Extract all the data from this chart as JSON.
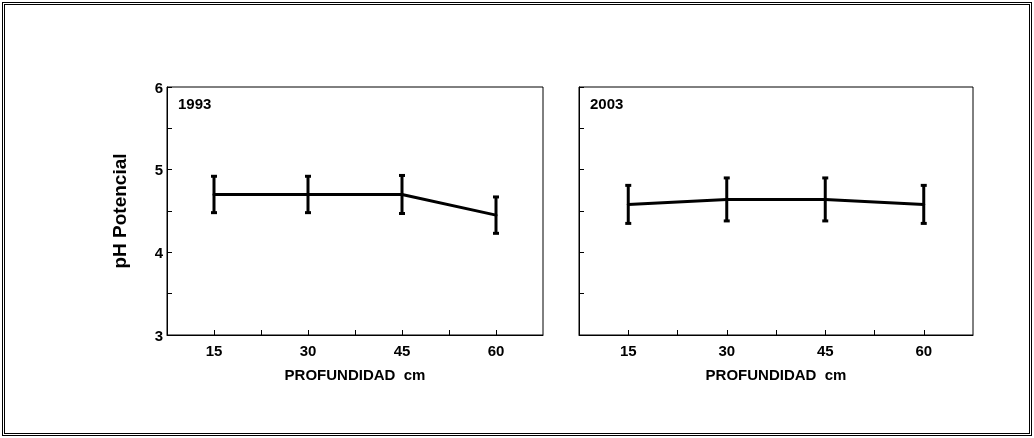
{
  "chart_data": [
    {
      "type": "line",
      "title": "1993",
      "xlabel": "PROFUNDIDAD  cm",
      "ylabel": "pH Potencial",
      "x": [
        15,
        30,
        45,
        60
      ],
      "series": [
        {
          "color": "#000000",
          "values": [
            4.7,
            4.7,
            4.7,
            4.45
          ],
          "errors": [
            0.22,
            0.22,
            0.23,
            0.22
          ]
        }
      ],
      "xlim": [
        7.5,
        67.5
      ],
      "xticks": [
        15,
        30,
        45,
        60,
        {
          "value": 22.5,
          "label": null
        },
        {
          "value": 37.5,
          "label": null
        },
        {
          "value": 52.5,
          "label": null
        }
      ],
      "ylim": [
        3,
        6
      ],
      "yticks": [
        3,
        4,
        5,
        6,
        {
          "value": 3.5,
          "label": null
        },
        {
          "value": 4.5,
          "label": null
        },
        {
          "value": 5.5,
          "label": null
        }
      ],
      "grid": false,
      "marker": "none",
      "line_style": "solid"
    },
    {
      "type": "line",
      "title": "2003",
      "xlabel": "PROFUNDIDAD  cm",
      "x": [
        15,
        30,
        45,
        60
      ],
      "series": [
        {
          "color": "#000000",
          "values": [
            4.58,
            4.64,
            4.64,
            4.58
          ],
          "errors": [
            0.23,
            0.26,
            0.26,
            0.23
          ]
        }
      ],
      "xlim": [
        7.5,
        67.5
      ],
      "xticks": [
        15,
        30,
        45,
        60,
        {
          "value": 22.5,
          "label": null
        },
        {
          "value": 37.5,
          "label": null
        },
        {
          "value": 52.5,
          "label": null
        }
      ],
      "ylim": [
        3,
        6
      ],
      "yticks": [
        3,
        4,
        5,
        6,
        {
          "value": 3.5,
          "label": null
        },
        {
          "value": 4.5,
          "label": null
        },
        {
          "value": 5.5,
          "label": null
        }
      ],
      "tick_labels": "x",
      "grid": false,
      "marker": "none",
      "line_style": "solid"
    }
  ]
}
